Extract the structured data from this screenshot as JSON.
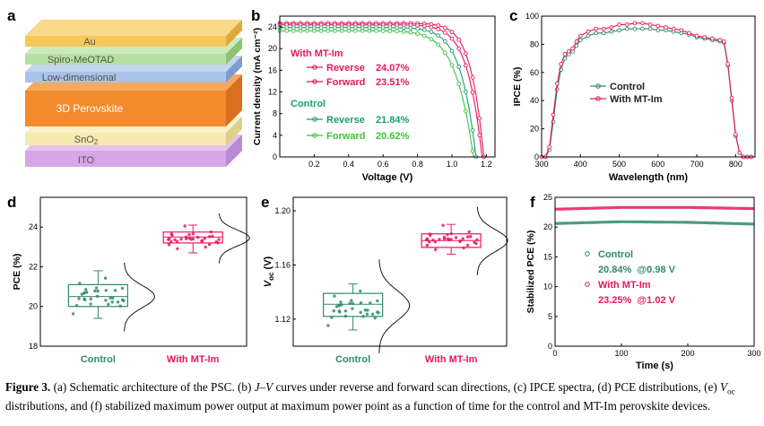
{
  "panels": {
    "a": "a",
    "b": "b",
    "c": "c",
    "d": "d",
    "e": "e",
    "f": "f"
  },
  "colors": {
    "mt": "#e8175d",
    "control_b": "#1b9e77",
    "forward_b": "#3cc43c",
    "control": "#2f8a6a",
    "au": "#f6c85a",
    "spiro": "#b5e0a0",
    "lowdim": "#a9c2e8",
    "perov": "#f28a2e",
    "sno2": "#f4eab0",
    "ito": "#d9a8e8"
  },
  "schematic": {
    "layers": [
      "Au",
      "Spiro-MeOTAD",
      "Low-dimensional",
      "3D Perovskite",
      "SnO2",
      "ITO"
    ]
  },
  "jv_legend": {
    "mt_title": "With MT-Im",
    "mt_reverse_label": "Reverse",
    "mt_reverse_value": "24.07%",
    "mt_forward_label": "Forward",
    "mt_forward_value": "23.51%",
    "ctrl_title": "Control",
    "ctrl_reverse_label": "Reverse",
    "ctrl_reverse_value": "21.84%",
    "ctrl_forward_label": "Forward",
    "ctrl_forward_value": "20.62%"
  },
  "ipce_legend": {
    "control": "Control",
    "mt": "With MT-Im"
  },
  "stab_legend": {
    "control": "Control",
    "control_value": "20.84%  @0.98 V",
    "mt": "With MT-Im",
    "mt_value": "23.25%  @1.02 V"
  },
  "chart_data": [
    {
      "id": "b",
      "type": "line",
      "xlabel": "Voltage (V)",
      "ylabel": "Current density (mA cm⁻²)",
      "xlim": [
        0,
        1.25
      ],
      "ylim": [
        0,
        26
      ],
      "xticks": [
        0.2,
        0.4,
        0.6,
        0.8,
        1.0,
        1.2
      ],
      "yticks": [
        0,
        4,
        8,
        12,
        16,
        20,
        24
      ],
      "series": [
        {
          "name": "With MT-Im Reverse",
          "color": "#e8175d",
          "jsc": 24.7,
          "voc": 1.185,
          "shape": 16
        },
        {
          "name": "With MT-Im Forward",
          "color": "#e8175d",
          "jsc": 24.4,
          "voc": 1.175,
          "shape": 14
        },
        {
          "name": "Control Reverse",
          "color": "#1b9e77",
          "jsc": 23.9,
          "voc": 1.14,
          "shape": 13
        },
        {
          "name": "Control Forward",
          "color": "#3cc43c",
          "jsc": 23.3,
          "voc": 1.125,
          "shape": 11
        }
      ]
    },
    {
      "id": "c",
      "type": "line",
      "xlabel": "Wavelength (nm)",
      "ylabel": "IPCE (%)",
      "xlim": [
        300,
        850
      ],
      "ylim": [
        0,
        100
      ],
      "xticks": [
        300,
        400,
        500,
        600,
        700,
        800
      ],
      "yticks": [
        0,
        20,
        40,
        60,
        80,
        100
      ],
      "series": [
        {
          "name": "Control",
          "color": "#2f8a6a",
          "x": [
            300,
            310,
            320,
            330,
            340,
            350,
            360,
            370,
            380,
            390,
            400,
            420,
            440,
            460,
            480,
            500,
            520,
            540,
            560,
            580,
            600,
            620,
            640,
            660,
            680,
            700,
            720,
            740,
            760,
            770,
            780,
            790,
            800,
            810,
            820,
            830,
            840
          ],
          "y": [
            0,
            0,
            5,
            25,
            48,
            62,
            70,
            73,
            75,
            79,
            83,
            86,
            88,
            88,
            89,
            90,
            91,
            91,
            91,
            91,
            90,
            90,
            89,
            88,
            87,
            85,
            84,
            83,
            82,
            81,
            65,
            40,
            15,
            3,
            0,
            0,
            0
          ]
        },
        {
          "name": "With MT-Im",
          "color": "#e8175d",
          "x": [
            300,
            310,
            320,
            330,
            340,
            350,
            360,
            370,
            380,
            390,
            400,
            420,
            440,
            460,
            480,
            500,
            520,
            540,
            560,
            580,
            600,
            620,
            640,
            660,
            680,
            700,
            720,
            740,
            760,
            770,
            780,
            790,
            800,
            810,
            820,
            830,
            840
          ],
          "y": [
            0,
            0,
            7,
            30,
            52,
            66,
            73,
            75,
            77,
            82,
            86,
            89,
            91,
            91,
            92,
            94,
            94,
            95,
            95,
            94,
            93,
            92,
            91,
            90,
            88,
            86,
            85,
            84,
            83,
            82,
            66,
            42,
            16,
            3,
            0,
            0,
            0
          ]
        }
      ]
    },
    {
      "id": "d",
      "type": "box",
      "ylabel": "PCE (%)",
      "ylim": [
        18,
        25.5
      ],
      "yticks": [
        18,
        20,
        22,
        24
      ],
      "categories": [
        "Control",
        "With MT-Im"
      ],
      "boxes": [
        {
          "q1": 20.0,
          "median": 20.5,
          "q3": 21.1,
          "min": 19.4,
          "max": 21.8,
          "mean": 20.5,
          "sd": 0.55
        },
        {
          "q1": 23.2,
          "median": 23.5,
          "q3": 23.75,
          "min": 22.7,
          "max": 24.1,
          "mean": 23.45,
          "sd": 0.4
        }
      ]
    },
    {
      "id": "e",
      "type": "box",
      "ylabel": "Voc (V)",
      "ylim": [
        1.1,
        1.21
      ],
      "yticks": [
        1.12,
        1.16,
        1.2
      ],
      "categories": [
        "Control",
        "With MT-Im"
      ],
      "boxes": [
        {
          "q1": 1.122,
          "median": 1.131,
          "q3": 1.139,
          "min": 1.112,
          "max": 1.146,
          "mean": 1.13,
          "sd": 0.011
        },
        {
          "q1": 1.173,
          "median": 1.178,
          "q3": 1.183,
          "min": 1.168,
          "max": 1.19,
          "mean": 1.178,
          "sd": 0.008
        }
      ]
    },
    {
      "id": "f",
      "type": "line",
      "xlabel": "Time (s)",
      "ylabel": "Stabilized PCE (%)",
      "xlim": [
        0,
        300
      ],
      "ylim": [
        0,
        25
      ],
      "xticks": [
        0,
        100,
        200,
        300
      ],
      "yticks": [
        0,
        5,
        10,
        15,
        20,
        25
      ],
      "series": [
        {
          "name": "Control",
          "color": "#2f8a6a",
          "x": [
            0,
            100,
            200,
            300
          ],
          "y": [
            20.6,
            20.9,
            20.8,
            20.5
          ]
        },
        {
          "name": "With MT-Im",
          "color": "#e8175d",
          "x": [
            0,
            100,
            200,
            300
          ],
          "y": [
            23.0,
            23.3,
            23.3,
            23.1
          ]
        }
      ]
    }
  ],
  "caption": {
    "fig": "Figure 3.",
    "p1": " (a) Schematic architecture of the PSC. (b) ",
    "jv": "J–V",
    "p2": " curves under reverse and forward scan directions, (c) IPCE spectra, (d) PCE distributions, (e) ",
    "voc": "V",
    "voc_sub": "oc",
    "p3": " distributions, and (f) stabilized maximum power output at maximum power point as a function of time for the control and MT-Im perovskite devices."
  }
}
